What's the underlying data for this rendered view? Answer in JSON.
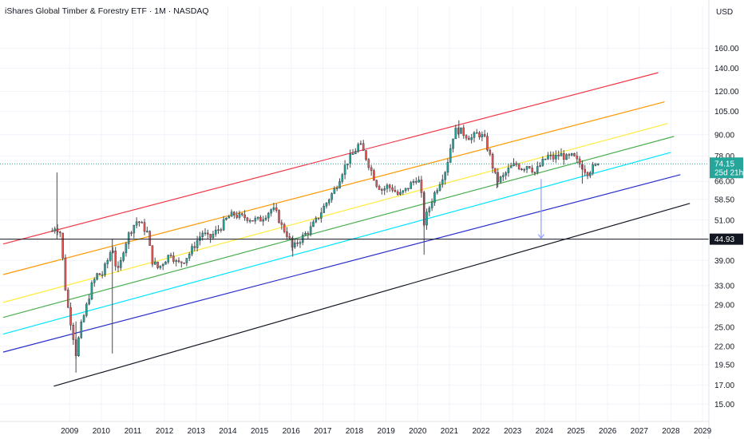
{
  "title": "iShares Global Timber & Forestry ETF · 1M · NASDAQ",
  "currency": "USD",
  "colors": {
    "up": "#26a69a",
    "down": "#ef5350",
    "last_price_tag": "#26a69a",
    "level_tag": "#131722",
    "grid": "#f0f3fa",
    "arrow": "#8c9eff"
  },
  "last_price": {
    "value": 74.15,
    "label": "74.15",
    "countdown": "25d 21h"
  },
  "level_line": {
    "value": 44.93,
    "label": "44.93"
  },
  "chart_data": {
    "type": "candlestick",
    "scale": "log",
    "y_ticks": [
      "160.00",
      "140.00",
      "120.00",
      "105.00",
      "90.00",
      "78.00",
      "66.00",
      "58.50",
      "51.00",
      "44.93",
      "39.00",
      "33.00",
      "29.00",
      "25.00",
      "22.00",
      "19.50",
      "17.00",
      "15.00"
    ],
    "x_ticks": [
      "2009",
      "2010",
      "2011",
      "2012",
      "2013",
      "2014",
      "2015",
      "2016",
      "2017",
      "2018",
      "2019",
      "2020",
      "2021",
      "2022",
      "2023",
      "2024",
      "2025",
      "2026",
      "2027",
      "2028",
      "2029"
    ],
    "ylim": [
      13.8,
      190
    ],
    "xlim": [
      2006.8,
      2029.2
    ],
    "price_path": [
      [
        2008.45,
        47.5
      ],
      [
        2008.55,
        49
      ],
      [
        2008.7,
        47
      ],
      [
        2008.8,
        38
      ],
      [
        2008.9,
        30
      ],
      [
        2009.0,
        27
      ],
      [
        2009.1,
        24
      ],
      [
        2009.2,
        21
      ],
      [
        2009.35,
        25
      ],
      [
        2009.5,
        28
      ],
      [
        2009.7,
        33
      ],
      [
        2009.9,
        36
      ],
      [
        2010.0,
        35
      ],
      [
        2010.2,
        39
      ],
      [
        2010.35,
        43
      ],
      [
        2010.45,
        38
      ],
      [
        2010.55,
        36
      ],
      [
        2010.7,
        42
      ],
      [
        2010.85,
        46
      ],
      [
        2011.0,
        49
      ],
      [
        2011.15,
        51
      ],
      [
        2011.3,
        49
      ],
      [
        2011.45,
        47
      ],
      [
        2011.6,
        39
      ],
      [
        2011.8,
        37
      ],
      [
        2012.0,
        39
      ],
      [
        2012.2,
        41
      ],
      [
        2012.4,
        38
      ],
      [
        2012.6,
        39
      ],
      [
        2012.8,
        41
      ],
      [
        2013.0,
        44
      ],
      [
        2013.2,
        47
      ],
      [
        2013.4,
        45
      ],
      [
        2013.6,
        47
      ],
      [
        2013.8,
        49
      ],
      [
        2014.0,
        52
      ],
      [
        2014.2,
        53
      ],
      [
        2014.4,
        52
      ],
      [
        2014.6,
        52
      ],
      [
        2014.8,
        51
      ],
      [
        2015.0,
        51
      ],
      [
        2015.2,
        53
      ],
      [
        2015.4,
        55
      ],
      [
        2015.55,
        53
      ],
      [
        2015.7,
        49
      ],
      [
        2015.9,
        46
      ],
      [
        2016.05,
        42
      ],
      [
        2016.2,
        44
      ],
      [
        2016.4,
        46
      ],
      [
        2016.6,
        48
      ],
      [
        2016.8,
        51
      ],
      [
        2017.0,
        55
      ],
      [
        2017.2,
        59
      ],
      [
        2017.4,
        63
      ],
      [
        2017.6,
        70
      ],
      [
        2017.8,
        76
      ],
      [
        2018.0,
        80
      ],
      [
        2018.1,
        84
      ],
      [
        2018.2,
        83
      ],
      [
        2018.35,
        78
      ],
      [
        2018.5,
        72
      ],
      [
        2018.7,
        65
      ],
      [
        2018.9,
        62
      ],
      [
        2019.0,
        64
      ],
      [
        2019.2,
        63
      ],
      [
        2019.4,
        60
      ],
      [
        2019.6,
        62
      ],
      [
        2019.8,
        65
      ],
      [
        2020.0,
        68
      ],
      [
        2020.1,
        62
      ],
      [
        2020.2,
        50
      ],
      [
        2020.35,
        55
      ],
      [
        2020.5,
        60
      ],
      [
        2020.7,
        66
      ],
      [
        2020.9,
        72
      ],
      [
        2021.0,
        80
      ],
      [
        2021.15,
        92
      ],
      [
        2021.3,
        93
      ],
      [
        2021.5,
        90
      ],
      [
        2021.7,
        88
      ],
      [
        2021.9,
        91
      ],
      [
        2022.1,
        88
      ],
      [
        2022.25,
        80
      ],
      [
        2022.4,
        71
      ],
      [
        2022.5,
        66
      ],
      [
        2022.7,
        68
      ],
      [
        2022.9,
        72
      ],
      [
        2023.1,
        74
      ],
      [
        2023.3,
        72
      ],
      [
        2023.5,
        74
      ],
      [
        2023.7,
        70
      ],
      [
        2023.9,
        74
      ],
      [
        2024.1,
        78
      ],
      [
        2024.3,
        77
      ],
      [
        2024.5,
        79
      ],
      [
        2024.7,
        77
      ],
      [
        2024.9,
        78
      ],
      [
        2025.05,
        75
      ],
      [
        2025.2,
        73
      ],
      [
        2025.35,
        70
      ],
      [
        2025.5,
        72
      ],
      [
        2025.65,
        73
      ],
      [
        2025.75,
        74.15
      ]
    ],
    "wicks": [
      {
        "x": 2008.6,
        "low": 45,
        "high": 70
      },
      {
        "x": 2009.2,
        "low": 18.5,
        "high": 26
      },
      {
        "x": 2010.35,
        "low": 21,
        "high": 45
      },
      {
        "x": 2016.05,
        "low": 40,
        "high": 46
      },
      {
        "x": 2020.2,
        "low": 40.5,
        "high": 62
      },
      {
        "x": 2021.3,
        "low": 88,
        "high": 99
      },
      {
        "x": 2022.5,
        "low": 63,
        "high": 70
      },
      {
        "x": 2025.2,
        "low": 65,
        "high": 75
      }
    ],
    "channel_lines": [
      {
        "color": "#f23645",
        "start": [
          2006.9,
          43.5
        ],
        "end": [
          2027.6,
          136
        ]
      },
      {
        "color": "#ff9800",
        "start": [
          2006.9,
          35.5
        ],
        "end": [
          2027.8,
          112
        ]
      },
      {
        "color": "#ffeb3b",
        "start": [
          2006.9,
          29.5
        ],
        "end": [
          2027.9,
          97
        ]
      },
      {
        "color": "#4caf50",
        "start": [
          2006.9,
          26.7
        ],
        "end": [
          2028.1,
          89
        ]
      },
      {
        "color": "#00e5ff",
        "start": [
          2006.9,
          23.9
        ],
        "end": [
          2028.0,
          80
        ]
      },
      {
        "color": "#2a2ecc",
        "start": [
          2006.9,
          21.2
        ],
        "end": [
          2028.3,
          69
        ]
      },
      {
        "color": "#131722",
        "start": [
          2008.5,
          16.9
        ],
        "end": [
          2028.6,
          57
        ]
      }
    ],
    "arrow": {
      "x": 2023.9,
      "from": 67,
      "to": 44.93
    }
  }
}
